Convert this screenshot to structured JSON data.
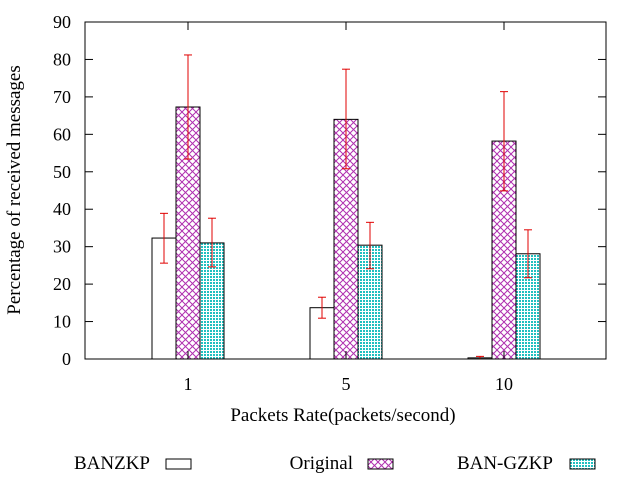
{
  "chart_data": {
    "type": "bar",
    "xlabel": "Packets Rate(packets/second)",
    "ylabel": "Percentage of received messages",
    "ylim": [
      0,
      90
    ],
    "yticks": [
      0,
      10,
      20,
      30,
      40,
      50,
      60,
      70,
      80,
      90
    ],
    "categories": [
      "1",
      "5",
      "10"
    ],
    "grid": false,
    "legend_position": "bottom",
    "series": [
      {
        "name": "BANZKP",
        "pattern": "none",
        "color": "#000000",
        "values": [
          32.3,
          13.7,
          0.3
        ],
        "error_low": [
          25.6,
          10.9,
          0.0
        ],
        "error_high": [
          38.9,
          16.5,
          0.7
        ]
      },
      {
        "name": "Original",
        "pattern": "crosshatch",
        "color": "#b030b0",
        "values": [
          67.3,
          64.0,
          58.2
        ],
        "error_low": [
          53.4,
          50.8,
          44.9
        ],
        "error_high": [
          81.2,
          77.4,
          71.4
        ]
      },
      {
        "name": "BAN-GZKP",
        "pattern": "dots",
        "color": "#20c0c0",
        "values": [
          31.0,
          30.4,
          28.1
        ],
        "error_low": [
          24.6,
          24.1,
          21.7
        ],
        "error_high": [
          37.6,
          36.5,
          34.5
        ]
      }
    ],
    "error_bar_color": "#e00000"
  }
}
